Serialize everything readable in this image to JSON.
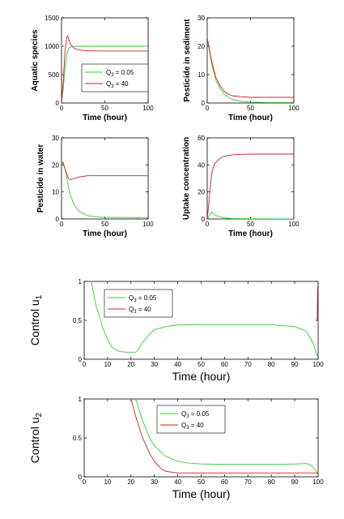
{
  "series_colors": {
    "q005": "#33cc33",
    "q40": "#cc2222"
  },
  "chart_data": [
    {
      "type": "line",
      "xlabel": "Time (hour)",
      "ylabel": "Aquatic species",
      "xlim": [
        0,
        100
      ],
      "ylim": [
        0,
        1500
      ],
      "xticks": [
        0,
        50,
        100
      ],
      "yticks": [
        0,
        500,
        1000,
        1500
      ],
      "legend": "inside-center",
      "legend_entries": [
        "Q3 = 0.05",
        "Q3 = 40"
      ],
      "series": [
        {
          "name": "Q3 = 0.05",
          "x": [
            0,
            2,
            4,
            6,
            8,
            10,
            15,
            20,
            30,
            50,
            70,
            100
          ],
          "values": [
            0,
            250,
            600,
            850,
            950,
            985,
            998,
            1000,
            1000,
            1000,
            1000,
            1000
          ]
        },
        {
          "name": "Q3 = 40",
          "x": [
            0,
            2,
            4,
            6,
            7,
            8,
            10,
            15,
            20,
            30,
            50,
            70,
            100
          ],
          "values": [
            0,
            400,
            900,
            1150,
            1180,
            1150,
            1040,
            960,
            935,
            920,
            915,
            915,
            915
          ]
        }
      ]
    },
    {
      "type": "line",
      "xlabel": "Time (hour)",
      "ylabel": "Pesticide in sediment",
      "xlim": [
        0,
        100
      ],
      "ylim": [
        0,
        30
      ],
      "xticks": [
        0,
        50,
        100
      ],
      "yticks": [
        0,
        10,
        20,
        30
      ],
      "series": [
        {
          "name": "Q3 = 0.05",
          "x": [
            0,
            5,
            10,
            15,
            20,
            25,
            30,
            40,
            50,
            70,
            100
          ],
          "values": [
            23,
            14,
            8,
            5,
            3,
            2,
            1.2,
            0.6,
            0.3,
            0.2,
            0.2
          ]
        },
        {
          "name": "Q3 = 40",
          "x": [
            0,
            5,
            10,
            15,
            20,
            25,
            30,
            40,
            50,
            70,
            100
          ],
          "values": [
            23,
            15,
            9,
            6,
            4,
            3,
            2.5,
            2.2,
            2,
            2,
            2
          ]
        }
      ]
    },
    {
      "type": "line",
      "xlabel": "Time (hour)",
      "ylabel": "Pesticide in water",
      "xlim": [
        0,
        100
      ],
      "ylim": [
        0,
        30
      ],
      "xticks": [
        0,
        50,
        100
      ],
      "yticks": [
        0,
        10,
        20,
        30
      ],
      "series": [
        {
          "name": "Q3 = 0.05",
          "x": [
            0,
            2,
            5,
            8,
            10,
            15,
            20,
            25,
            30,
            40,
            50,
            100
          ],
          "values": [
            21,
            21,
            17,
            12,
            9,
            5,
            3,
            2,
            1.2,
            0.8,
            0.6,
            0.5
          ]
        },
        {
          "name": "Q3 = 40",
          "x": [
            0,
            2,
            5,
            8,
            10,
            15,
            20,
            30,
            40,
            50,
            100
          ],
          "values": [
            21,
            20.5,
            17.5,
            15,
            14.5,
            15,
            15.5,
            16,
            16,
            16,
            16
          ]
        }
      ]
    },
    {
      "type": "line",
      "xlabel": "Time (hour)",
      "ylabel": "Uptake concentration",
      "xlim": [
        0,
        100
      ],
      "ylim": [
        0,
        60
      ],
      "xticks": [
        0,
        50,
        100
      ],
      "yticks": [
        0,
        20,
        40,
        60
      ],
      "series": [
        {
          "name": "Q3 = 0.05",
          "x": [
            0,
            3,
            5,
            7,
            10,
            15,
            20,
            30,
            50,
            100
          ],
          "values": [
            0,
            3,
            5,
            4,
            2.5,
            1.5,
            0.8,
            0.3,
            0.1,
            0
          ]
        },
        {
          "name": "Q3 = 40",
          "x": [
            0,
            2,
            4,
            6,
            8,
            10,
            15,
            20,
            30,
            40,
            50,
            100
          ],
          "values": [
            0,
            12,
            27,
            36,
            40,
            42,
            45,
            46.5,
            47.5,
            47.8,
            48,
            48
          ]
        }
      ]
    },
    {
      "type": "line",
      "xlabel": "Time (hour)",
      "ylabel": "Control u1",
      "xlim": [
        0,
        100
      ],
      "ylim": [
        0,
        1
      ],
      "xticks": [
        0,
        10,
        20,
        30,
        40,
        50,
        60,
        70,
        80,
        90,
        100
      ],
      "yticks": [
        0,
        0.5,
        1
      ],
      "legend": "top-left",
      "legend_entries": [
        "Q3 = 0.05",
        "Q3 = 40"
      ],
      "series": [
        {
          "name": "Q3 = 0.05",
          "x": [
            3,
            5,
            8,
            10,
            12,
            15,
            18,
            20,
            22,
            23,
            25,
            28,
            30,
            35,
            40,
            50,
            60,
            70,
            80,
            90,
            95,
            98,
            99,
            100
          ],
          "values": [
            1,
            0.7,
            0.4,
            0.25,
            0.15,
            0.1,
            0.09,
            0.09,
            0.09,
            0.12,
            0.22,
            0.32,
            0.38,
            0.42,
            0.44,
            0.445,
            0.445,
            0.445,
            0.445,
            0.42,
            0.36,
            0.2,
            0.1,
            0.02
          ]
        },
        {
          "name": "Q3 = 40",
          "x": [
            99.6,
            99.8,
            100
          ],
          "values": [
            0.5,
            0.9,
            1
          ]
        }
      ]
    },
    {
      "type": "line",
      "xlabel": "Time (hour)",
      "ylabel": "Control u2",
      "xlim": [
        0,
        100
      ],
      "ylim": [
        0,
        1
      ],
      "xticks": [
        0,
        10,
        20,
        30,
        40,
        50,
        60,
        70,
        80,
        90,
        100
      ],
      "yticks": [
        0,
        0.5,
        1
      ],
      "legend": "top-center",
      "legend_entries": [
        "Q3 = 0.05",
        "Q3 = 40"
      ],
      "series": [
        {
          "name": "Q3 = 0.05",
          "x": [
            22,
            25,
            28,
            30,
            35,
            40,
            45,
            50,
            60,
            70,
            80,
            90,
            95,
            97,
            99,
            100
          ],
          "values": [
            1,
            0.72,
            0.5,
            0.4,
            0.26,
            0.2,
            0.175,
            0.165,
            0.16,
            0.16,
            0.16,
            0.165,
            0.17,
            0.15,
            0.08,
            0.02
          ]
        },
        {
          "name": "Q3 = 40",
          "x": [
            20,
            22,
            25,
            28,
            30,
            33,
            35,
            40,
            50,
            60,
            70,
            80,
            90,
            100
          ],
          "values": [
            1,
            0.78,
            0.5,
            0.3,
            0.2,
            0.1,
            0.07,
            0.05,
            0.05,
            0.05,
            0.05,
            0.05,
            0.05,
            0.05
          ]
        }
      ]
    }
  ]
}
